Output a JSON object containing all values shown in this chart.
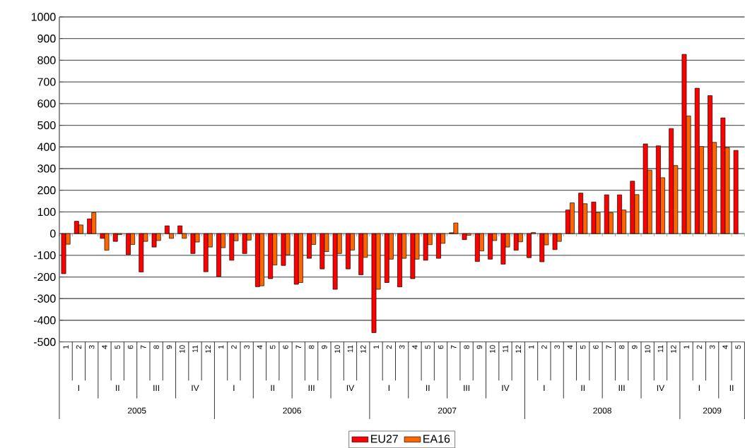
{
  "chart_data": {
    "type": "bar",
    "categories": [
      "1",
      "2",
      "3",
      "4",
      "5",
      "6",
      "7",
      "8",
      "9",
      "10",
      "11",
      "12",
      "1",
      "2",
      "3",
      "4",
      "5",
      "6",
      "7",
      "8",
      "9",
      "10",
      "11",
      "12",
      "1",
      "2",
      "3",
      "4",
      "5",
      "6",
      "7",
      "8",
      "9",
      "10",
      "11",
      "12",
      "1",
      "2",
      "3",
      "4",
      "5",
      "6",
      "7",
      "8",
      "9",
      "10",
      "11",
      "12",
      "1",
      "2",
      "3",
      "4",
      "5"
    ],
    "series": [
      {
        "name": "EU27",
        "color": "#ff0000",
        "values": [
          -185,
          57,
          68,
          -22,
          -36,
          -97,
          -177,
          -62,
          36,
          36,
          -92,
          -176,
          -198,
          -123,
          -92,
          -245,
          -208,
          -147,
          -234,
          -114,
          -163,
          -257,
          -163,
          -190,
          -457,
          -226,
          -246,
          -208,
          -123,
          -114,
          4,
          -28,
          -129,
          -118,
          -141,
          -77,
          -111,
          -130,
          -74,
          109,
          187,
          146,
          179,
          179,
          242,
          414,
          405,
          485,
          827,
          671,
          637,
          534,
          384
        ]
      },
      {
        "name": "EA16",
        "color": "#ff6600",
        "values": [
          -49,
          40,
          97,
          -77,
          -5,
          -50,
          -36,
          -32,
          -22,
          -22,
          -39,
          -62,
          -65,
          -33,
          -30,
          -241,
          -145,
          -98,
          -226,
          -50,
          -83,
          -92,
          -76,
          -110,
          -257,
          -118,
          -114,
          -118,
          -51,
          -45,
          49,
          -8,
          -80,
          -32,
          -62,
          -38,
          5,
          -52,
          -36,
          142,
          138,
          97,
          96,
          109,
          180,
          293,
          258,
          314,
          543,
          402,
          421,
          397,
          null
        ]
      }
    ],
    "annotations": [
      "I",
      "II",
      "III",
      "IV",
      "I",
      "II",
      "III",
      "IV",
      "I",
      "II",
      "III",
      "IV",
      "I",
      "II",
      "III",
      "IV",
      "I",
      "II",
      "2005",
      "2006",
      "2007",
      "2008",
      "2009"
    ],
    "ylim": [
      -500,
      1000
    ],
    "yticks": [
      -500,
      -400,
      -300,
      -200,
      -100,
      0,
      100,
      200,
      300,
      400,
      500,
      600,
      700,
      800,
      900,
      1000
    ],
    "grid": "y",
    "legend": "bottom"
  }
}
